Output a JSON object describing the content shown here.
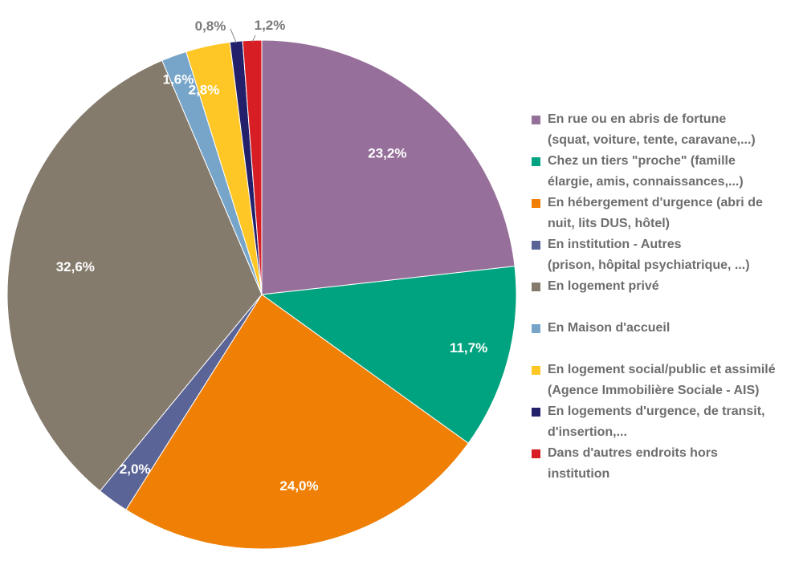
{
  "chart_data": {
    "type": "pie",
    "slices": [
      {
        "label": "En rue ou en abris de fortune (squat, voiture, tente, caravane,...)",
        "value": 23.2,
        "display": "23,2%",
        "color": "#966f9a"
      },
      {
        "label": "Chez un tiers \"proche\" (famille élargie, amis, connaissances,...)",
        "value": 11.7,
        "display": "11,7%",
        "color": "#00a37f"
      },
      {
        "label": "En hébergement d'urgence (abri de nuit, lits DUS, hôtel)",
        "value": 24.0,
        "display": "24,0%",
        "color": "#ef7f05"
      },
      {
        "label": "En institution - Autres (prison, hôpital psychiatrique, ...)",
        "value": 2.0,
        "display": "2,0%",
        "color": "#5a6496"
      },
      {
        "label": "En logement privé",
        "value": 32.6,
        "display": "32,6%",
        "color": "#857b6d"
      },
      {
        "label": "En Maison d'accueil",
        "value": 1.6,
        "display": "1,6%",
        "color": "#76a5c9"
      },
      {
        "label": "En logement social/public et assimilé (Agence Immobilière Sociale - AIS)",
        "value": 2.8,
        "display": "2,8%",
        "color": "#ffc726"
      },
      {
        "label": "En logements d'urgence, de transit, d'insertion,...",
        "value": 0.8,
        "display": "0,8%",
        "color": "#221f6b"
      },
      {
        "label": "Dans d'autres endroits hors institution",
        "value": 1.2,
        "display": "1,2%",
        "color": "#d81e25"
      }
    ],
    "legend_position": "right",
    "legend": [
      {
        "lines": [
          "En rue ou en abris de fortune",
          "(squat, voiture, tente, caravane,...)"
        ],
        "color": "#966f9a"
      },
      {
        "lines": [
          "Chez un tiers \"proche\" (famille",
          "élargie, amis, connaissances,...)"
        ],
        "color": "#00a37f"
      },
      {
        "lines": [
          "En hébergement d'urgence (abri de",
          "nuit, lits DUS, hôtel)"
        ],
        "color": "#ef7f05"
      },
      {
        "lines": [
          "En institution - Autres",
          "(prison, hôpital psychiatrique, ...)"
        ],
        "color": "#5a6496"
      },
      {
        "lines": [
          "En logement privé",
          ""
        ],
        "color": "#857b6d"
      },
      {
        "lines": [
          "En Maison d'accueil",
          ""
        ],
        "color": "#76a5c9"
      },
      {
        "lines": [
          "En logement social/public et assimilé",
          "(Agence Immobilière Sociale - AIS)"
        ],
        "color": "#ffc726"
      },
      {
        "lines": [
          "En logements d'urgence, de transit,",
          "d'insertion,..."
        ],
        "color": "#221f6b"
      },
      {
        "lines": [
          "Dans d'autres endroits hors",
          "institution"
        ],
        "color": "#d81e25"
      }
    ]
  }
}
